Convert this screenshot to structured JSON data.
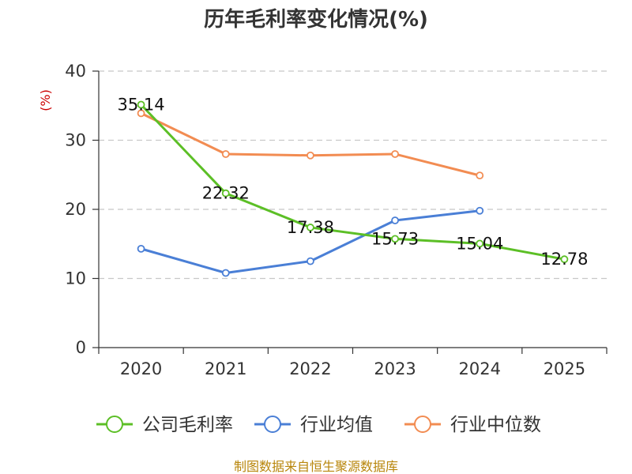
{
  "chart_data": {
    "type": "line",
    "title": "历年毛利率变化情况(%)",
    "ylabel": "(%)",
    "xlabel": "",
    "categories": [
      "2020",
      "2021",
      "2022",
      "2023",
      "2024",
      "2025"
    ],
    "ylim": [
      0,
      40
    ],
    "yticks": [
      0,
      10,
      20,
      30,
      40
    ],
    "grid": true,
    "legend_position": "bottom",
    "series": [
      {
        "name": "公司毛利率",
        "color": "#5cbf26",
        "values": [
          35.14,
          22.32,
          17.38,
          15.73,
          15.04,
          12.78
        ],
        "labels": [
          "35.14",
          "22.32",
          "17.38",
          "15.73",
          "15.04",
          "12.78"
        ]
      },
      {
        "name": "行业均值",
        "color": "#4a7fd6",
        "values": [
          14.3,
          10.8,
          12.5,
          18.4,
          19.8,
          null
        ]
      },
      {
        "name": "行业中位数",
        "color": "#f28c52",
        "values": [
          33.9,
          28.0,
          27.8,
          28.0,
          24.9,
          null
        ]
      }
    ]
  },
  "source": "制图数据来自恒生聚源数据库"
}
